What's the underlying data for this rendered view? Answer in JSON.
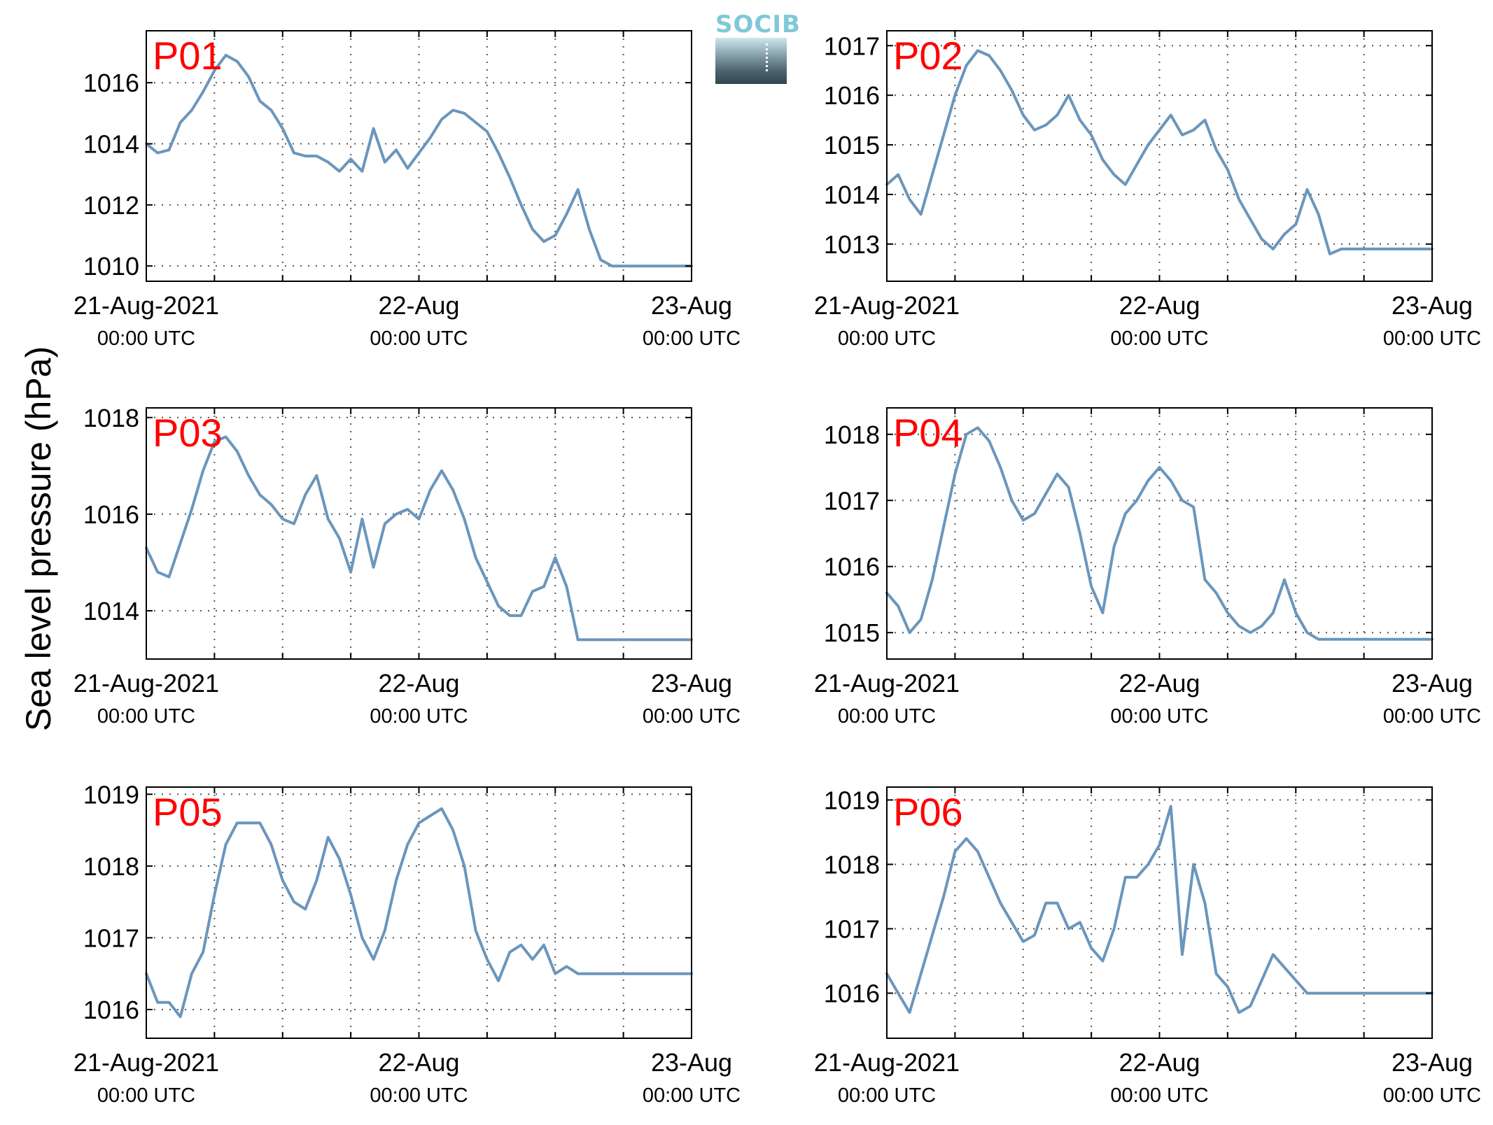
{
  "ylabel": "Sea level pressure (hPa)",
  "logo_text": "SOCIB",
  "colors": {
    "line": "#6b96bc",
    "panel_label": "#ff0000",
    "axis": "#000000",
    "grid": "#555555"
  },
  "x_ticks": [
    {
      "date": "21-Aug-2021",
      "time": "00:00 UTC"
    },
    {
      "date": "22-Aug",
      "time": "00:00 UTC"
    },
    {
      "date": "23-Aug",
      "time": "00:00 UTC"
    }
  ],
  "chart_data": [
    {
      "type": "line",
      "title": "P01",
      "xlim": [
        "2021-08-21T00:00",
        "2021-08-23T00:00"
      ],
      "xunit": "hours since 21-Aug-2021 00:00 UTC",
      "ylim": [
        1009.5,
        1017.7
      ],
      "yticks": [
        1010,
        1012,
        1014,
        1016
      ],
      "grid": true,
      "x": [
        0,
        1,
        2,
        3,
        4,
        5,
        6,
        7,
        8,
        9,
        10,
        11,
        12,
        13,
        14,
        15,
        16,
        17,
        18,
        19,
        20,
        21,
        22,
        23,
        24,
        25,
        26,
        27,
        28,
        29,
        30,
        31,
        32,
        33,
        34,
        35,
        36,
        37,
        38,
        39,
        40,
        41,
        42,
        43,
        44,
        45,
        46,
        47,
        48
      ],
      "values": [
        1014.0,
        1013.7,
        1013.8,
        1014.7,
        1015.1,
        1015.7,
        1016.4,
        1016.9,
        1016.7,
        1016.2,
        1015.4,
        1015.1,
        1014.5,
        1013.7,
        1013.6,
        1013.6,
        1013.4,
        1013.1,
        1013.5,
        1013.1,
        1014.5,
        1013.4,
        1013.8,
        1013.2,
        1013.7,
        1014.2,
        1014.8,
        1015.1,
        1015.0,
        1014.7,
        1014.4,
        1013.7,
        1012.9,
        1012.0,
        1011.2,
        1010.8,
        1011.0,
        1011.7,
        1012.5,
        1011.2,
        1010.2,
        1010.0,
        1010.0,
        1010.0,
        1010.0,
        1010.0,
        1010.0,
        1010.0,
        1010.0
      ]
    },
    {
      "type": "line",
      "title": "P02",
      "xlim": [
        "2021-08-21T00:00",
        "2021-08-23T00:00"
      ],
      "xunit": "hours since 21-Aug-2021 00:00 UTC",
      "ylim": [
        1012.25,
        1017.3
      ],
      "yticks": [
        1013,
        1014,
        1015,
        1016,
        1017
      ],
      "grid": true,
      "x": [
        0,
        1,
        2,
        3,
        4,
        5,
        6,
        7,
        8,
        9,
        10,
        11,
        12,
        13,
        14,
        15,
        16,
        17,
        18,
        19,
        20,
        21,
        22,
        23,
        24,
        25,
        26,
        27,
        28,
        29,
        30,
        31,
        32,
        33,
        34,
        35,
        36,
        37,
        38,
        39,
        40,
        41,
        42,
        43,
        44,
        45,
        46,
        47,
        48
      ],
      "values": [
        1014.2,
        1014.4,
        1013.9,
        1013.6,
        1014.4,
        1015.2,
        1016.0,
        1016.6,
        1016.9,
        1016.8,
        1016.5,
        1016.1,
        1015.6,
        1015.3,
        1015.4,
        1015.6,
        1016.0,
        1015.5,
        1015.2,
        1014.7,
        1014.4,
        1014.2,
        1014.6,
        1015.0,
        1015.3,
        1015.6,
        1015.2,
        1015.3,
        1015.5,
        1014.9,
        1014.5,
        1013.9,
        1013.5,
        1013.1,
        1012.9,
        1013.2,
        1013.4,
        1014.1,
        1013.6,
        1012.8,
        1012.9,
        1012.9,
        1012.9,
        1012.9,
        1012.9,
        1012.9,
        1012.9,
        1012.9,
        1012.9
      ]
    },
    {
      "type": "line",
      "title": "P03",
      "xlim": [
        "2021-08-21T00:00",
        "2021-08-23T00:00"
      ],
      "xunit": "hours since 21-Aug-2021 00:00 UTC",
      "ylim": [
        1013.0,
        1018.2
      ],
      "yticks": [
        1014,
        1016,
        1018
      ],
      "grid": true,
      "x": [
        0,
        1,
        2,
        3,
        4,
        5,
        6,
        7,
        8,
        9,
        10,
        11,
        12,
        13,
        14,
        15,
        16,
        17,
        18,
        19,
        20,
        21,
        22,
        23,
        24,
        25,
        26,
        27,
        28,
        29,
        30,
        31,
        32,
        33,
        34,
        35,
        36,
        37,
        38,
        39,
        40,
        41,
        42,
        43,
        44,
        45,
        46,
        47,
        48
      ],
      "values": [
        1015.3,
        1014.8,
        1014.7,
        1015.4,
        1016.1,
        1016.9,
        1017.5,
        1017.6,
        1017.3,
        1016.8,
        1016.4,
        1016.2,
        1015.9,
        1015.8,
        1016.4,
        1016.8,
        1015.9,
        1015.5,
        1014.8,
        1015.9,
        1014.9,
        1015.8,
        1016.0,
        1016.1,
        1015.9,
        1016.5,
        1016.9,
        1016.5,
        1015.9,
        1015.1,
        1014.6,
        1014.1,
        1013.9,
        1013.9,
        1014.4,
        1014.5,
        1015.1,
        1014.5,
        1013.4,
        1013.4,
        1013.4,
        1013.4,
        1013.4,
        1013.4,
        1013.4,
        1013.4,
        1013.4,
        1013.4,
        1013.4
      ]
    },
    {
      "type": "line",
      "title": "P04",
      "xlim": [
        "2021-08-21T00:00",
        "2021-08-23T00:00"
      ],
      "xunit": "hours since 21-Aug-2021 00:00 UTC",
      "ylim": [
        1014.6,
        1018.4
      ],
      "yticks": [
        1015,
        1016,
        1017,
        1018
      ],
      "grid": true,
      "x": [
        0,
        1,
        2,
        3,
        4,
        5,
        6,
        7,
        8,
        9,
        10,
        11,
        12,
        13,
        14,
        15,
        16,
        17,
        18,
        19,
        20,
        21,
        22,
        23,
        24,
        25,
        26,
        27,
        28,
        29,
        30,
        31,
        32,
        33,
        34,
        35,
        36,
        37,
        38,
        39,
        40,
        41,
        42,
        43,
        44,
        45,
        46,
        47,
        48
      ],
      "values": [
        1015.6,
        1015.4,
        1015.0,
        1015.2,
        1015.8,
        1016.6,
        1017.4,
        1018.0,
        1018.1,
        1017.9,
        1017.5,
        1017.0,
        1016.7,
        1016.8,
        1017.1,
        1017.4,
        1017.2,
        1016.5,
        1015.7,
        1015.3,
        1016.3,
        1016.8,
        1017.0,
        1017.3,
        1017.5,
        1017.3,
        1017.0,
        1016.9,
        1015.8,
        1015.6,
        1015.3,
        1015.1,
        1015.0,
        1015.1,
        1015.3,
        1015.8,
        1015.3,
        1015.0,
        1014.9,
        1014.9,
        1014.9,
        1014.9,
        1014.9,
        1014.9,
        1014.9,
        1014.9,
        1014.9,
        1014.9,
        1014.9
      ]
    },
    {
      "type": "line",
      "title": "P05",
      "xlim": [
        "2021-08-21T00:00",
        "2021-08-23T00:00"
      ],
      "xunit": "hours since 21-Aug-2021 00:00 UTC",
      "ylim": [
        1015.6,
        1019.1
      ],
      "yticks": [
        1016,
        1017,
        1018,
        1019
      ],
      "grid": true,
      "x": [
        0,
        1,
        2,
        3,
        4,
        5,
        6,
        7,
        8,
        9,
        10,
        11,
        12,
        13,
        14,
        15,
        16,
        17,
        18,
        19,
        20,
        21,
        22,
        23,
        24,
        25,
        26,
        27,
        28,
        29,
        30,
        31,
        32,
        33,
        34,
        35,
        36,
        37,
        38,
        39,
        40,
        41,
        42,
        43,
        44,
        45,
        46,
        47,
        48
      ],
      "values": [
        1016.5,
        1016.1,
        1016.1,
        1015.9,
        1016.5,
        1016.8,
        1017.6,
        1018.3,
        1018.6,
        1018.6,
        1018.6,
        1018.3,
        1017.8,
        1017.5,
        1017.4,
        1017.8,
        1018.4,
        1018.1,
        1017.6,
        1017.0,
        1016.7,
        1017.1,
        1017.8,
        1018.3,
        1018.6,
        1018.7,
        1018.8,
        1018.5,
        1018.0,
        1017.1,
        1016.7,
        1016.4,
        1016.8,
        1016.9,
        1016.7,
        1016.9,
        1016.5,
        1016.6,
        1016.5,
        1016.5,
        1016.5,
        1016.5,
        1016.5,
        1016.5,
        1016.5,
        1016.5,
        1016.5,
        1016.5,
        1016.5
      ]
    },
    {
      "type": "line",
      "title": "P06",
      "xlim": [
        "2021-08-21T00:00",
        "2021-08-23T00:00"
      ],
      "xunit": "hours since 21-Aug-2021 00:00 UTC",
      "ylim": [
        1015.3,
        1019.2
      ],
      "yticks": [
        1016,
        1017,
        1018,
        1019
      ],
      "grid": true,
      "x": [
        0,
        1,
        2,
        3,
        4,
        5,
        6,
        7,
        8,
        9,
        10,
        11,
        12,
        13,
        14,
        15,
        16,
        17,
        18,
        19,
        20,
        21,
        22,
        23,
        24,
        25,
        26,
        27,
        28,
        29,
        30,
        31,
        32,
        33,
        34,
        35,
        36,
        37,
        38,
        39,
        40,
        41,
        42,
        43,
        44,
        45,
        46,
        47,
        48
      ],
      "values": [
        1016.3,
        1016.0,
        1015.7,
        1016.3,
        1016.9,
        1017.5,
        1018.2,
        1018.4,
        1018.2,
        1017.8,
        1017.4,
        1017.1,
        1016.8,
        1016.9,
        1017.4,
        1017.4,
        1017.0,
        1017.1,
        1016.7,
        1016.5,
        1017.0,
        1017.8,
        1017.8,
        1018.0,
        1018.3,
        1018.9,
        1016.6,
        1018.0,
        1017.4,
        1016.3,
        1016.1,
        1015.7,
        1015.8,
        1016.2,
        1016.6,
        1016.4,
        1016.2,
        1016.0,
        1016.0,
        1016.0,
        1016.0,
        1016.0,
        1016.0,
        1016.0,
        1016.0,
        1016.0,
        1016.0,
        1016.0,
        1016.0
      ]
    }
  ]
}
